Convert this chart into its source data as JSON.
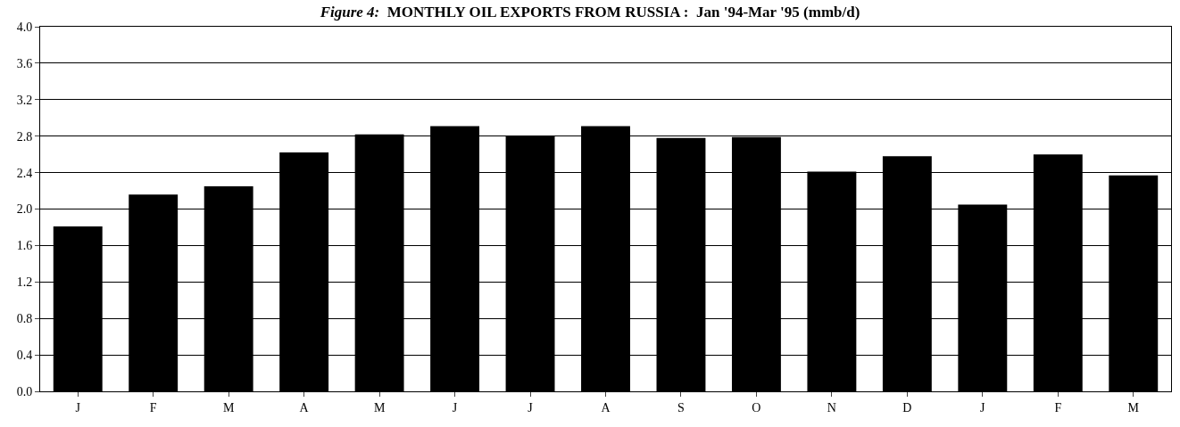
{
  "chart_data": {
    "type": "bar",
    "title": "Figure 4:  MONTHLY OIL EXPORTS FROM RUSSIA :  Jan '94-Mar '95 (mmb/d)",
    "categories": [
      "J",
      "F",
      "M",
      "A",
      "M",
      "J",
      "J",
      "A",
      "S",
      "O",
      "N",
      "D",
      "J",
      "F",
      "M"
    ],
    "values": [
      1.81,
      2.16,
      2.25,
      2.62,
      2.82,
      2.91,
      2.8,
      2.91,
      2.78,
      2.79,
      2.41,
      2.58,
      2.05,
      2.6,
      2.37
    ],
    "color": "#000000",
    "ylim": [
      0,
      4.0
    ],
    "yticks": [
      {
        "value": 0,
        "label": "0.0"
      },
      0.4,
      0.8,
      1.2,
      1.6,
      {
        "value": 2,
        "label": "2.0"
      },
      2.4,
      2.8,
      3.2,
      3.6,
      {
        "value": 4,
        "label": "4.0"
      }
    ],
    "grid": "y"
  }
}
